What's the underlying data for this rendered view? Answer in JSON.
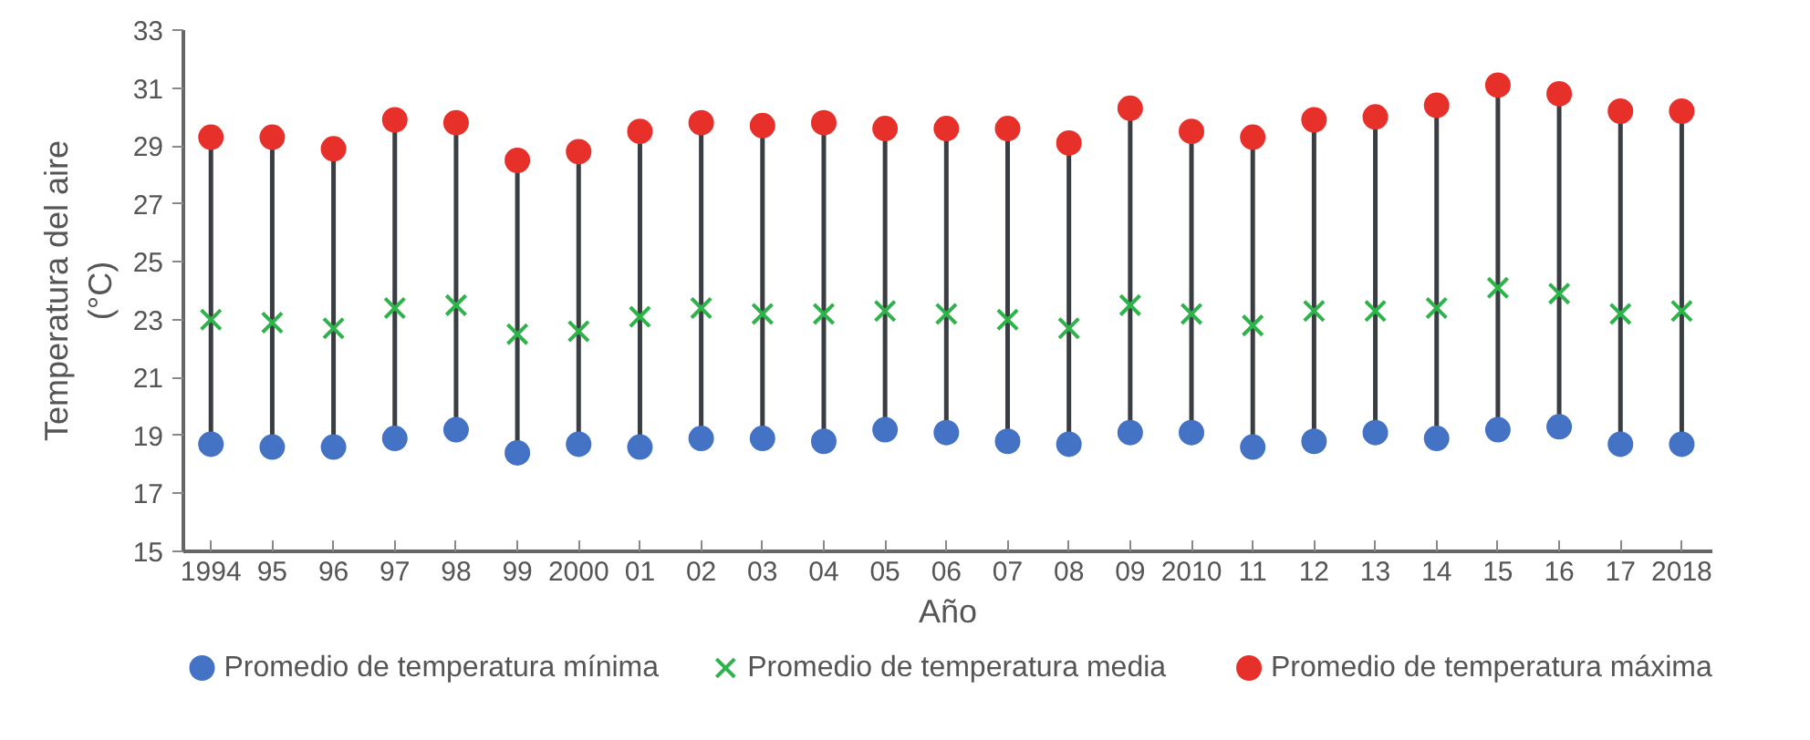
{
  "chart_data": {
    "type": "scatter",
    "xlabel": "Año",
    "ylabel": "Temperatura del aire (°C)",
    "categories": [
      "1994",
      "95",
      "96",
      "97",
      "98",
      "99",
      "2000",
      "01",
      "02",
      "03",
      "04",
      "05",
      "06",
      "07",
      "08",
      "09",
      "2010",
      "11",
      "12",
      "13",
      "14",
      "15",
      "16",
      "17",
      "2018"
    ],
    "ylim": [
      15,
      33
    ],
    "yticks": [
      15,
      17,
      19,
      21,
      23,
      25,
      27,
      29,
      31,
      33
    ],
    "grid": false,
    "legend": "bottom",
    "series": [
      {
        "name": "Promedio de temperatura mínima",
        "color": "#4472c4",
        "marker": "circle",
        "values": [
          18.7,
          18.6,
          18.6,
          18.9,
          19.2,
          18.4,
          18.7,
          18.6,
          18.9,
          18.9,
          18.8,
          19.2,
          19.1,
          18.8,
          18.7,
          19.1,
          19.1,
          18.6,
          18.8,
          19.1,
          18.9,
          19.2,
          19.3,
          18.7,
          18.7
        ]
      },
      {
        "name": "Promedio de temperatura media",
        "color": "#2db34a",
        "marker": "cross",
        "values": [
          23.0,
          22.9,
          22.7,
          23.4,
          23.5,
          22.5,
          22.6,
          23.1,
          23.4,
          23.2,
          23.2,
          23.3,
          23.2,
          23.0,
          22.7,
          23.5,
          23.2,
          22.8,
          23.3,
          23.3,
          23.4,
          24.1,
          23.9,
          23.2,
          23.3
        ]
      },
      {
        "name": "Promedio de temperatura máxima",
        "color": "#e8302a",
        "marker": "circle",
        "values": [
          29.3,
          29.3,
          28.9,
          29.9,
          29.8,
          28.5,
          28.8,
          29.5,
          29.8,
          29.7,
          29.8,
          29.6,
          29.6,
          29.6,
          29.1,
          30.3,
          29.5,
          29.3,
          29.9,
          30.0,
          30.4,
          31.1,
          30.8,
          30.2,
          30.2
        ]
      }
    ]
  }
}
